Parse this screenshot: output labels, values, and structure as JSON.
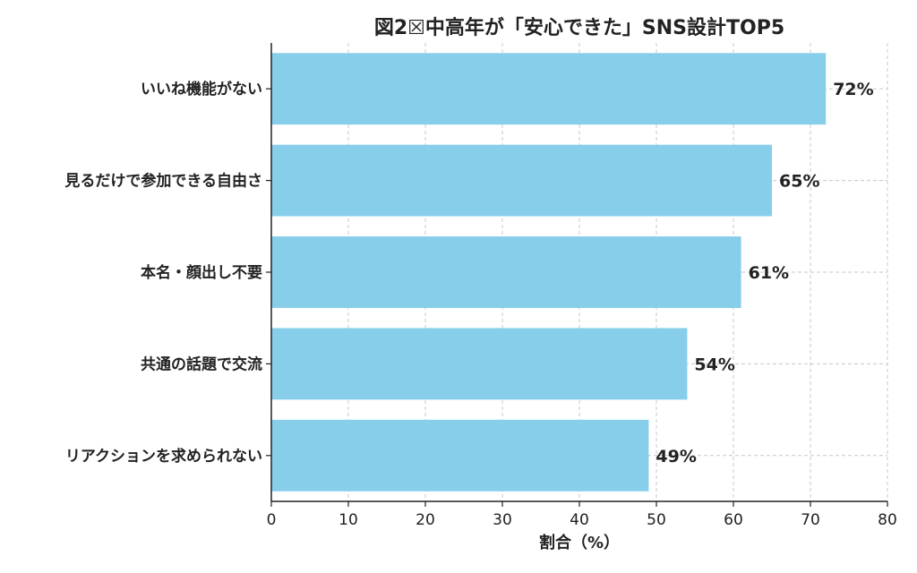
{
  "chart_data": {
    "type": "bar",
    "orientation": "horizontal",
    "title": "図2☒中高年が「安心できた」SNS設計TOP5",
    "xlabel": "割合（%）",
    "ylabel": "",
    "categories": [
      "いいね機能がない",
      "見るだけで参加できる自由さ",
      "本名・顔出し不要",
      "共通の話題で交流",
      "リアクションを求められない"
    ],
    "values": [
      72,
      65,
      61,
      54,
      49
    ],
    "value_labels": [
      "72%",
      "65%",
      "61%",
      "54%",
      "49%"
    ],
    "xlim": [
      0,
      80
    ],
    "xticks": [
      0,
      10,
      20,
      30,
      40,
      50,
      60,
      70,
      80
    ],
    "grid": true,
    "bar_color": "#87ceeb"
  }
}
